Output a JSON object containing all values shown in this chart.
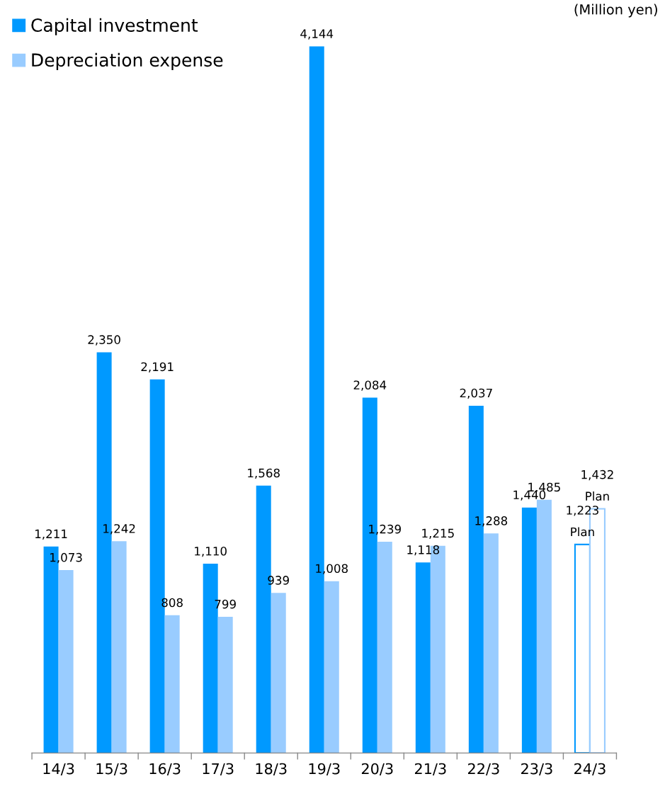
{
  "chart_data": {
    "type": "bar",
    "categories": [
      "14/3",
      "15/3",
      "16/3",
      "17/3",
      "18/3",
      "19/3",
      "20/3",
      "21/3",
      "22/3",
      "23/3",
      "24/3"
    ],
    "series": [
      {
        "name": "Capital investment",
        "color": "#0099ff",
        "values": [
          1211,
          2350,
          2191,
          1110,
          1568,
          4144,
          2084,
          1118,
          2037,
          1440,
          1223
        ],
        "value_labels": [
          "1,211",
          "2,350",
          "2,191",
          "1,110",
          "1,568",
          "4,144",
          "2,084",
          "1,118",
          "2,037",
          "1,440",
          "1,223"
        ]
      },
      {
        "name": "Depreciation expense",
        "color": "#99ccff",
        "values": [
          1073,
          1242,
          808,
          799,
          939,
          1008,
          1239,
          1215,
          1288,
          1485,
          1432
        ],
        "value_labels": [
          "1,073",
          "1,242",
          "808",
          "799",
          "939",
          "1,008",
          "1,239",
          "1,215",
          "1,288",
          "1,485",
          "1,432"
        ]
      }
    ],
    "annotations": [
      "(Million yen)",
      {
        "text": "Plan",
        "x": "24/3",
        "y": 1223
      },
      {
        "text": "Plan",
        "x": "24/3",
        "y": 1432
      }
    ],
    "legend": "top left",
    "grid": false
  }
}
